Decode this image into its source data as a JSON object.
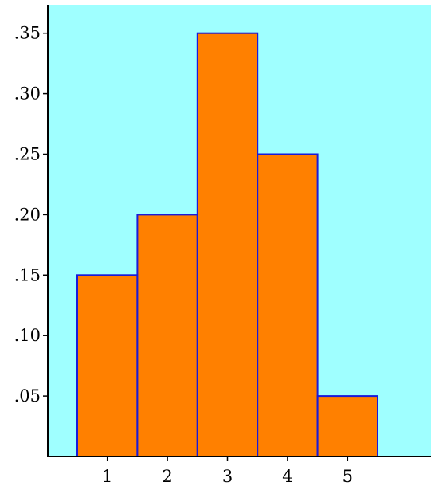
{
  "colors": {
    "plot_background": "#9FFFFF",
    "bar_fill": "#FF8000",
    "bar_stroke": "#1A1AD9",
    "axis": "#000000"
  },
  "chart_data": {
    "type": "bar",
    "title": "",
    "xlabel": "",
    "ylabel": "",
    "categories": [
      "1",
      "2",
      "3",
      "4",
      "5"
    ],
    "values": [
      0.15,
      0.2,
      0.35,
      0.25,
      0.05
    ],
    "ylim": [
      0,
      0.37
    ],
    "y_ticks": [
      0.05,
      0.1,
      0.15,
      0.2,
      0.25,
      0.3,
      0.35
    ],
    "y_tick_labels": [
      ".05",
      ".10",
      ".15",
      ".20",
      ".25",
      ".30",
      ".35"
    ],
    "grid": false,
    "legend": "none"
  }
}
